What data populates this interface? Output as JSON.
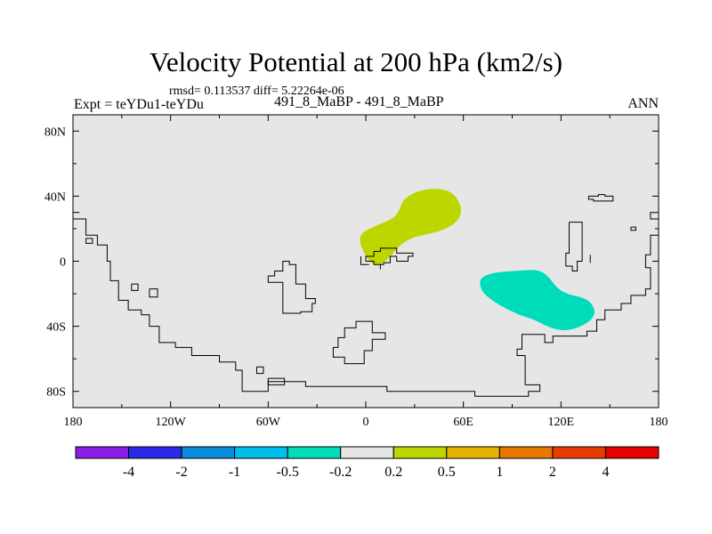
{
  "page": {
    "title": "Velocity Potential at 200 hPa (km2/s)",
    "stats_text": "rmsd= 0.113537 diff= 5.22264e-06",
    "expt_label": "Expt = teYDu1-teYDu",
    "case_label": "491_8_MaBP - 491_8_MaBP",
    "season_label": "ANN"
  },
  "colors": {
    "background": "#e6e6e6",
    "coastline": "#000000",
    "feature_positive": "#bdd600",
    "feature_negative": "#00dcb9"
  },
  "chart_data": {
    "type": "map-contour",
    "title": "Velocity Potential at 200 hPa (km2/s)",
    "xlim": [
      -180,
      180
    ],
    "ylim": [
      -90,
      90
    ],
    "x_ticks": [
      {
        "value": -180,
        "label": "180"
      },
      {
        "value": -120,
        "label": "120W"
      },
      {
        "value": -60,
        "label": "60W"
      },
      {
        "value": 0,
        "label": "0"
      },
      {
        "value": 60,
        "label": "60E"
      },
      {
        "value": 120,
        "label": "120E"
      },
      {
        "value": 180,
        "label": "180"
      }
    ],
    "y_ticks": [
      {
        "value": 80,
        "label": "80N"
      },
      {
        "value": 40,
        "label": "40N"
      },
      {
        "value": 0,
        "label": "0"
      },
      {
        "value": -40,
        "label": "40S"
      },
      {
        "value": -80,
        "label": "80S"
      }
    ],
    "colorbar": {
      "colors": [
        "#8a1ee6",
        "#2a2ae6",
        "#0a8cdc",
        "#00beeb",
        "#00dcb9",
        "#e6e6e6",
        "#bdd600",
        "#e6b400",
        "#e67800",
        "#e63c00",
        "#e60000"
      ],
      "labels": [
        "-4",
        "-2",
        "-1",
        "-0.5",
        "-0.2",
        "0.2",
        "0.5",
        "1",
        "2",
        "4"
      ]
    },
    "features": [
      {
        "name": "positive-anomaly-atlantic",
        "level": "0.2 to 0.5",
        "color": "#bdd600",
        "polygon": [
          [
            -4,
            12
          ],
          [
            -3,
            17
          ],
          [
            4,
            21
          ],
          [
            17,
            26
          ],
          [
            21,
            32
          ],
          [
            23,
            38
          ],
          [
            31,
            43
          ],
          [
            42,
            45
          ],
          [
            53,
            43
          ],
          [
            59,
            34
          ],
          [
            58,
            26
          ],
          [
            50,
            20
          ],
          [
            40,
            17
          ],
          [
            30,
            15
          ],
          [
            22,
            11
          ],
          [
            17,
            5
          ],
          [
            14,
            2
          ],
          [
            11,
            -1
          ],
          [
            9,
            -2
          ],
          [
            5,
            -2
          ],
          [
            2,
            0
          ],
          [
            -1,
            5
          ]
        ]
      },
      {
        "name": "negative-anomaly-indian-ocean",
        "level": "-0.5 to -0.2",
        "color": "#00dcb9",
        "polygon": [
          [
            70,
            -13
          ],
          [
            71,
            -10
          ],
          [
            78,
            -7
          ],
          [
            91,
            -6
          ],
          [
            106,
            -5
          ],
          [
            112,
            -9
          ],
          [
            117,
            -16
          ],
          [
            123,
            -20
          ],
          [
            136,
            -23
          ],
          [
            141,
            -29
          ],
          [
            140,
            -35
          ],
          [
            133,
            -40
          ],
          [
            123,
            -43
          ],
          [
            113,
            -41
          ],
          [
            104,
            -36
          ],
          [
            94,
            -33
          ],
          [
            84,
            -28
          ],
          [
            76,
            -23
          ],
          [
            71,
            -18
          ]
        ]
      }
    ],
    "coastlines": [
      [
        [
          -180,
          26
        ],
        [
          -172,
          26
        ],
        [
          -172,
          16
        ],
        [
          -165,
          16
        ],
        [
          -165,
          10
        ],
        [
          -159,
          10
        ],
        [
          -159,
          0
        ],
        [
          -157,
          0
        ],
        [
          -157,
          -12
        ],
        [
          -152,
          -12
        ],
        [
          -152,
          -24
        ],
        [
          -146,
          -24
        ],
        [
          -146,
          -30
        ],
        [
          -138,
          -30
        ],
        [
          -138,
          -33
        ],
        [
          -133,
          -33
        ],
        [
          -133,
          -40
        ],
        [
          -127,
          -40
        ],
        [
          -127,
          -50
        ],
        [
          -117,
          -50
        ],
        [
          -117,
          -53
        ],
        [
          -107,
          -53
        ],
        [
          -107,
          -58
        ],
        [
          -90,
          -58
        ],
        [
          -90,
          -62
        ],
        [
          -80,
          -62
        ],
        [
          -80,
          -67
        ],
        [
          -76,
          -67
        ],
        [
          -76,
          -80
        ],
        [
          -60,
          -80
        ],
        [
          -60,
          -74
        ],
        [
          -37,
          -74
        ],
        [
          -37,
          -77
        ],
        [
          13,
          -77
        ],
        [
          13,
          -80
        ],
        [
          67,
          -80
        ],
        [
          67,
          -83
        ],
        [
          100,
          -83
        ],
        [
          100,
          -80
        ],
        [
          107,
          -80
        ],
        [
          107,
          -76
        ],
        [
          98,
          -76
        ],
        [
          98,
          -58
        ],
        [
          93,
          -58
        ],
        [
          93,
          -54
        ],
        [
          96,
          -54
        ],
        [
          96,
          -45
        ],
        [
          110,
          -45
        ],
        [
          110,
          -50
        ],
        [
          115,
          -50
        ],
        [
          115,
          -46
        ],
        [
          136,
          -46
        ],
        [
          136,
          -43
        ],
        [
          142,
          -43
        ],
        [
          142,
          -36
        ],
        [
          147,
          -36
        ],
        [
          147,
          -30
        ],
        [
          157,
          -30
        ],
        [
          157,
          -26
        ],
        [
          163,
          -26
        ],
        [
          163,
          -21
        ],
        [
          172,
          -21
        ],
        [
          172,
          -17
        ],
        [
          175,
          -17
        ],
        [
          175,
          -4
        ],
        [
          172,
          -4
        ],
        [
          172,
          4
        ],
        [
          175,
          4
        ],
        [
          175,
          16
        ],
        [
          180,
          16
        ]
      ],
      [
        [
          -180,
          30
        ],
        [
          -176,
          30
        ]
      ],
      [
        [
          -172,
          14
        ],
        [
          -168,
          14
        ],
        [
          -168,
          11
        ],
        [
          -172,
          11
        ],
        [
          -172,
          14
        ]
      ],
      [
        [
          -144,
          -14
        ],
        [
          -140,
          -14
        ],
        [
          -140,
          -18
        ],
        [
          -144,
          -18
        ],
        [
          -144,
          -14
        ]
      ],
      [
        [
          -133,
          -17
        ],
        [
          -128,
          -17
        ],
        [
          -128,
          -22
        ],
        [
          -133,
          -22
        ],
        [
          -133,
          -17
        ]
      ],
      [
        [
          -60,
          -9
        ],
        [
          -60,
          -13
        ],
        [
          -51,
          -13
        ],
        [
          -51,
          -32
        ],
        [
          -40,
          -32
        ],
        [
          -40,
          -31
        ],
        [
          -33,
          -31
        ],
        [
          -33,
          -26
        ],
        [
          -31,
          -26
        ],
        [
          -31,
          -23
        ],
        [
          -37,
          -23
        ],
        [
          -37,
          -14
        ],
        [
          -43,
          -14
        ],
        [
          -43,
          -2
        ],
        [
          -47,
          -2
        ],
        [
          -47,
          0
        ],
        [
          -51,
          0
        ],
        [
          -51,
          -6
        ],
        [
          -56,
          -6
        ],
        [
          -56,
          -9
        ],
        [
          -60,
          -9
        ]
      ],
      [
        [
          -67,
          -65
        ],
        [
          -63,
          -65
        ],
        [
          -63,
          -69
        ],
        [
          -67,
          -69
        ],
        [
          -67,
          -65
        ]
      ],
      [
        [
          -60,
          -72
        ],
        [
          -50,
          -72
        ],
        [
          -50,
          -76
        ],
        [
          -60,
          -76
        ],
        [
          -60,
          -72
        ]
      ],
      [
        [
          -20,
          -57
        ],
        [
          -20,
          -59
        ],
        [
          -13,
          -59
        ],
        [
          -13,
          -63
        ],
        [
          -1,
          -63
        ],
        [
          -1,
          -55
        ],
        [
          4,
          -55
        ],
        [
          4,
          -48
        ],
        [
          12,
          -48
        ],
        [
          12,
          -44
        ],
        [
          4,
          -44
        ],
        [
          4,
          -37
        ],
        [
          -6,
          -37
        ],
        [
          -6,
          -41
        ],
        [
          -13,
          -41
        ],
        [
          -13,
          -47
        ],
        [
          -17,
          -47
        ],
        [
          -17,
          -53
        ],
        [
          -20,
          -53
        ],
        [
          -20,
          -57
        ]
      ],
      [
        [
          0,
          0
        ],
        [
          5,
          0
        ],
        [
          5,
          -2
        ],
        [
          11,
          -2
        ],
        [
          11,
          -1
        ],
        [
          15,
          -1
        ],
        [
          15,
          3
        ],
        [
          19,
          3
        ],
        [
          19,
          0
        ],
        [
          26,
          0
        ],
        [
          26,
          3
        ],
        [
          29,
          3
        ],
        [
          29,
          5
        ],
        [
          19,
          5
        ],
        [
          19,
          8
        ],
        [
          9,
          8
        ],
        [
          9,
          6
        ],
        [
          5,
          6
        ],
        [
          5,
          3
        ],
        [
          0,
          3
        ],
        [
          0,
          0
        ]
      ],
      [
        [
          9,
          -2
        ],
        [
          9,
          -5
        ]
      ],
      [
        [
          -3,
          3
        ],
        [
          -3,
          -2
        ],
        [
          2,
          -2
        ]
      ],
      [
        [
          137,
          40
        ],
        [
          143,
          40
        ],
        [
          143,
          41
        ],
        [
          147,
          41
        ],
        [
          147,
          40
        ],
        [
          152,
          40
        ],
        [
          152,
          37
        ],
        [
          140,
          37
        ],
        [
          140,
          38
        ],
        [
          137,
          38
        ],
        [
          137,
          40
        ]
      ],
      [
        [
          180,
          30
        ],
        [
          175,
          30
        ],
        [
          175,
          26
        ],
        [
          180,
          26
        ]
      ],
      [
        [
          163,
          21
        ],
        [
          166,
          21
        ],
        [
          166,
          19
        ],
        [
          163,
          19
        ],
        [
          163,
          21
        ]
      ],
      [
        [
          125,
          24
        ],
        [
          133,
          24
        ],
        [
          133,
          0
        ],
        [
          130,
          0
        ],
        [
          130,
          -6
        ],
        [
          127,
          -6
        ],
        [
          127,
          -3
        ],
        [
          123,
          -3
        ],
        [
          123,
          5
        ],
        [
          125,
          5
        ],
        [
          125,
          24
        ]
      ],
      [
        [
          138,
          -1
        ],
        [
          138,
          4
        ]
      ]
    ]
  }
}
